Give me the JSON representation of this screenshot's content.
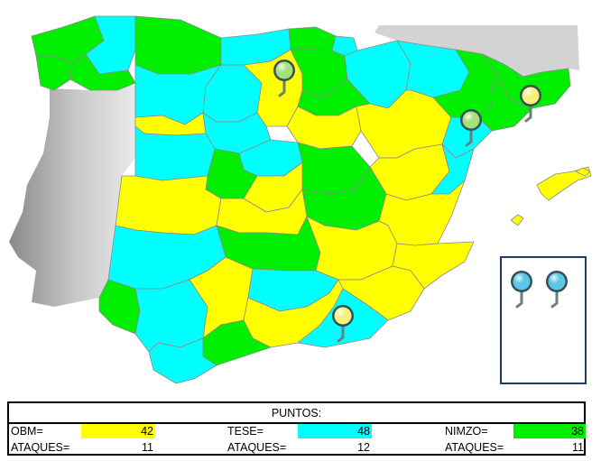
{
  "colors": {
    "obm": "#ffff00",
    "tese": "#00ffff",
    "nimzo": "#00ee00",
    "neighbor": "#d3d3d3",
    "border": "#8a8a8a",
    "pin_yellow": "#f4f27a",
    "pin_green": "#a6e07a",
    "pin_blue": "#5cc6e6"
  },
  "map": {
    "regions": [
      {
        "id": "galicia-a-coruna",
        "team": "nimzo"
      },
      {
        "id": "galicia-lugo",
        "team": "tese"
      },
      {
        "id": "galicia-pontevedra",
        "team": "nimzo"
      },
      {
        "id": "galicia-ourense",
        "team": "nimzo"
      },
      {
        "id": "asturias",
        "team": "nimzo"
      },
      {
        "id": "cantabria",
        "team": "tese"
      },
      {
        "id": "vizcaya",
        "team": "nimzo"
      },
      {
        "id": "guipuzcoa",
        "team": "tese"
      },
      {
        "id": "alava",
        "team": "nimzo"
      },
      {
        "id": "navarra",
        "team": "tese"
      },
      {
        "id": "la-rioja",
        "team": "nimzo"
      },
      {
        "id": "leon",
        "team": "tese"
      },
      {
        "id": "palencia",
        "team": "tese"
      },
      {
        "id": "burgos",
        "team": "obm"
      },
      {
        "id": "zamora",
        "team": "obm"
      },
      {
        "id": "valladolid",
        "team": "tese"
      },
      {
        "id": "soria",
        "team": "obm"
      },
      {
        "id": "salamanca",
        "team": "tese"
      },
      {
        "id": "avila",
        "team": "nimzo"
      },
      {
        "id": "segovia",
        "team": "tese"
      },
      {
        "id": "madrid",
        "team": "obm"
      },
      {
        "id": "guadalajara",
        "team": "nimzo"
      },
      {
        "id": "huesca",
        "team": "tese"
      },
      {
        "id": "zaragoza",
        "team": "obm"
      },
      {
        "id": "teruel",
        "team": "obm"
      },
      {
        "id": "lleida",
        "team": "nimzo"
      },
      {
        "id": "girona",
        "team": "nimzo"
      },
      {
        "id": "barcelona",
        "team": "nimzo"
      },
      {
        "id": "tarragona",
        "team": "tese"
      },
      {
        "id": "castellon",
        "team": "tese"
      },
      {
        "id": "valencia",
        "team": "obm"
      },
      {
        "id": "cuenca",
        "team": "nimzo"
      },
      {
        "id": "caceres",
        "team": "obm"
      },
      {
        "id": "toledo",
        "team": "obm"
      },
      {
        "id": "badajoz",
        "team": "tese"
      },
      {
        "id": "ciudad-real",
        "team": "nimzo"
      },
      {
        "id": "albacete",
        "team": "obm"
      },
      {
        "id": "alicante",
        "team": "obm"
      },
      {
        "id": "murcia",
        "team": "obm"
      },
      {
        "id": "huelva",
        "team": "nimzo"
      },
      {
        "id": "sevilla",
        "team": "tese"
      },
      {
        "id": "cordoba",
        "team": "obm"
      },
      {
        "id": "jaen",
        "team": "tese"
      },
      {
        "id": "granada",
        "team": "obm"
      },
      {
        "id": "almeria",
        "team": "tese"
      },
      {
        "id": "cadiz",
        "team": "tese"
      },
      {
        "id": "malaga",
        "team": "nimzo"
      },
      {
        "id": "mallorca",
        "team": "obm"
      },
      {
        "id": "menorca",
        "team": "obm"
      },
      {
        "id": "ibiza",
        "team": "obm"
      }
    ],
    "pins": [
      {
        "name": "burgos",
        "team": "nimzo"
      },
      {
        "name": "tarragona",
        "team": "nimzo"
      },
      {
        "name": "barcelona",
        "team": "obm"
      },
      {
        "name": "almeria",
        "team": "obm"
      }
    ],
    "reserve_pins": [
      {
        "team": "tese"
      },
      {
        "team": "tese"
      }
    ]
  },
  "scoreboard": {
    "title": "PUNTOS:",
    "teams": [
      {
        "key": "obm",
        "label": "OBM=",
        "points": "42",
        "attacks_label": "ATAQUES=",
        "attacks": "11"
      },
      {
        "key": "tese",
        "label": "TESE=",
        "points": "48",
        "attacks_label": "ATAQUES=",
        "attacks": "12"
      },
      {
        "key": "nimzo",
        "label": "NIMZO=",
        "points": "38",
        "attacks_label": "ATAQUES=",
        "attacks": "11"
      }
    ]
  }
}
